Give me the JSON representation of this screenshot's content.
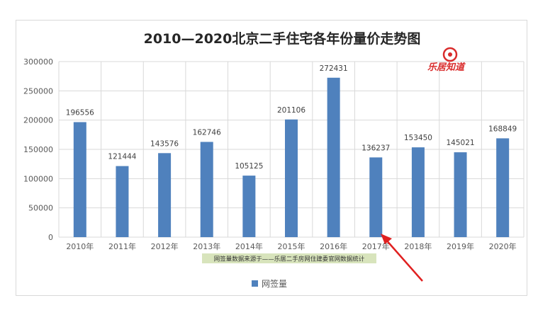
{
  "chart_data": {
    "type": "bar",
    "title": "2010—2020北京二手住宅各年份量价走势图",
    "categories": [
      "2010年",
      "2011年",
      "2012年",
      "2013年",
      "2014年",
      "2015年",
      "2016年",
      "2017年",
      "2018年",
      "2019年",
      "2020年"
    ],
    "series": [
      {
        "name": "网签量",
        "values": [
          196556,
          121444,
          143576,
          162746,
          105125,
          201106,
          272431,
          136237,
          153450,
          145021,
          168849
        ]
      }
    ],
    "ylim": [
      0,
      300000
    ],
    "yticks": [
      0,
      50000,
      100000,
      150000,
      200000,
      250000,
      300000
    ],
    "grid": true,
    "legend": "bottom",
    "data_labels": true,
    "bar_color": "#4f81bd"
  },
  "note": "网签量数据来源于——乐居二手房网住建委官网数据统计",
  "logo": "乐居知道",
  "arrow_color": "#e02020"
}
